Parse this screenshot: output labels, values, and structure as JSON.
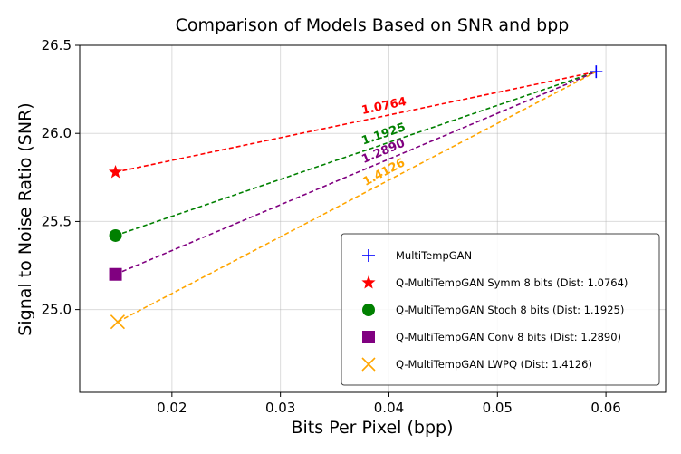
{
  "chart_data": {
    "type": "scatter",
    "title": "Comparison of Models Based on SNR and bpp",
    "xlabel": "Bits Per Pixel (bpp)",
    "ylabel": "Signal to Noise Ratio (SNR)",
    "xlim": [
      0.0115,
      0.0655
    ],
    "ylim": [
      24.53,
      26.5
    ],
    "xticks": [
      "0.02",
      "0.03",
      "0.04",
      "0.05",
      "0.06"
    ],
    "yticks": [
      "25.0",
      "25.5",
      "26.0",
      "26.5"
    ],
    "grid": true,
    "legend_position": "bottom-right",
    "reference": {
      "name": "MultiTempGAN",
      "x": 0.0591,
      "y": 26.35,
      "color": "#0000ff",
      "marker": "plus"
    },
    "series": [
      {
        "name": "Q-MultiTempGAN Symm 8 bits (Dist: 1.0764)",
        "x": 0.0148,
        "y": 25.78,
        "color": "#ff0000",
        "marker": "star",
        "distance_label": "1.0764"
      },
      {
        "name": "Q-MultiTempGAN Stoch 8 bits (Dist: 1.1925)",
        "x": 0.0148,
        "y": 25.42,
        "color": "#008000",
        "marker": "circle",
        "distance_label": "1.1925"
      },
      {
        "name": "Q-MultiTempGAN Conv 8 bits (Dist: 1.2890)",
        "x": 0.0148,
        "y": 25.2,
        "color": "#800080",
        "marker": "square",
        "distance_label": "1.2890"
      },
      {
        "name": "Q-MultiTempGAN LWPQ (Dist: 1.4126)",
        "x": 0.015,
        "y": 24.93,
        "color": "#ffa500",
        "marker": "x",
        "distance_label": "1.4126"
      }
    ]
  }
}
